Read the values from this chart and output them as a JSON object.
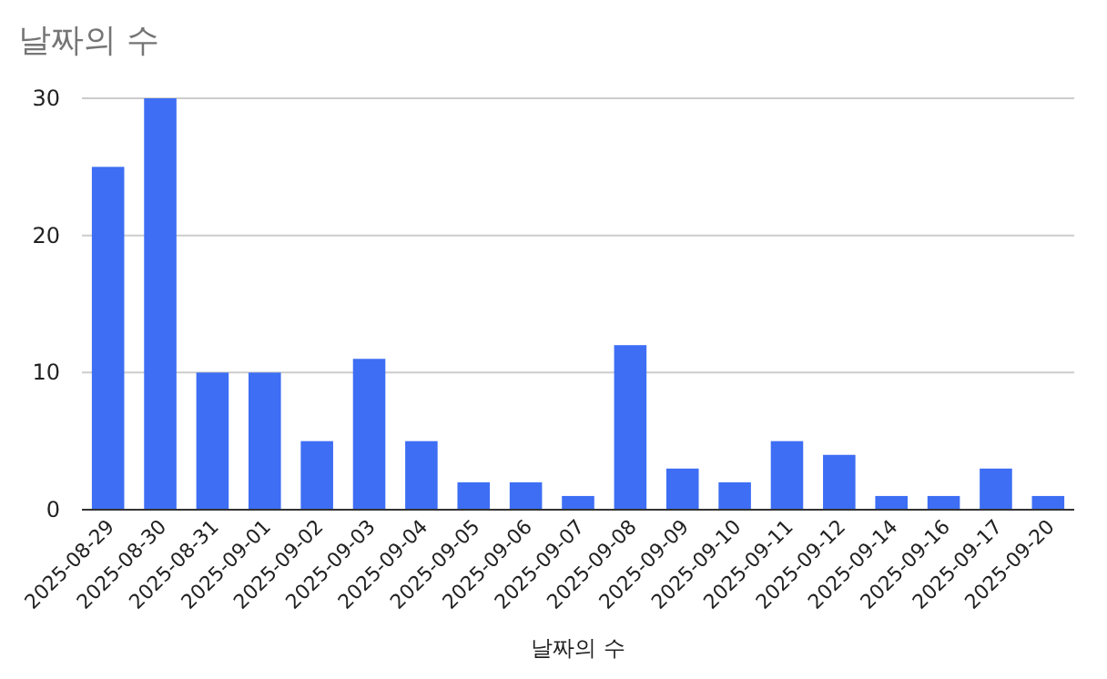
{
  "chart_data": {
    "type": "bar",
    "title": "날짜의 수",
    "xlabel": "날짜의 수",
    "categories": [
      "2025-08-29",
      "2025-08-30",
      "2025-08-31",
      "2025-09-01",
      "2025-09-02",
      "2025-09-03",
      "2025-09-04",
      "2025-09-05",
      "2025-09-06",
      "2025-09-07",
      "2025-09-08",
      "2025-09-09",
      "2025-09-10",
      "2025-09-11",
      "2025-09-12",
      "2025-09-14",
      "2025-09-16",
      "2025-09-17",
      "2025-09-20"
    ],
    "values": [
      25,
      30,
      10,
      10,
      5,
      11,
      5,
      2,
      2,
      1,
      12,
      3,
      2,
      5,
      4,
      1,
      1,
      3,
      1
    ],
    "color": "#3d6ef4",
    "ylim": [
      0,
      30
    ],
    "yticks": [
      0,
      10,
      20,
      30
    ],
    "grid": "y"
  }
}
